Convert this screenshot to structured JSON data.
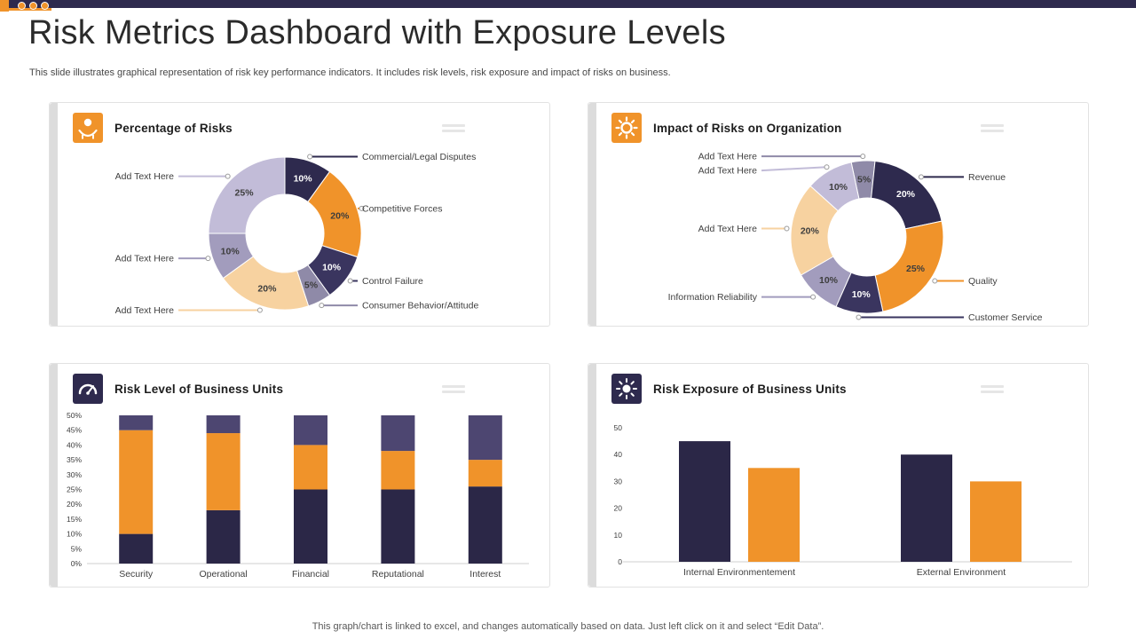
{
  "page": {
    "title": "Risk Metrics Dashboard with Exposure Levels",
    "subtitle": "This slide illustrates graphical representation of risk key performance indicators. It includes risk levels, risk exposure and impact of risks on business.",
    "footer": "This graph/chart is linked to excel, and changes automatically based on data. Just left click on it and select “Edit Data”."
  },
  "colors": {
    "accent_orange": "#f0932a",
    "accent_navy": "#2e2a4e",
    "bar_navy": "#2b2747",
    "bar_purple": "#4d4671",
    "peach": "#f7d2a0",
    "lavender": "#c2bcd8",
    "purple": "#a29cbd",
    "gray": "#8f8aa8"
  },
  "panels": {
    "percentage_of_risks": {
      "title": "Percentage of Risks"
    },
    "impact_of_risks": {
      "title": "Impact of Risks on Organization"
    },
    "risk_level": {
      "title": "Risk Level of Business Units"
    },
    "risk_exposure": {
      "title": "Risk Exposure of Business Units"
    }
  },
  "chart_data": [
    {
      "id": "percentage_of_risks",
      "type": "donut",
      "title": "Percentage of Risks",
      "start_angle": 0,
      "slices": [
        {
          "label": "Commercial/Legal Disputes",
          "value": 10,
          "color": "#2e2a4e",
          "text_color": "#ffffff",
          "side": "right"
        },
        {
          "label": "Competitive Forces",
          "value": 20,
          "color": "#f0932a",
          "text_color": "#3d3d3d",
          "side": "right"
        },
        {
          "label": "Control Failure",
          "value": 10,
          "color": "#3a355f",
          "text_color": "#ffffff",
          "side": "right"
        },
        {
          "label": "Consumer Behavior/Attitude",
          "value": 5,
          "color": "#8f8aa8",
          "text_color": "#3d3d3d",
          "side": "right"
        },
        {
          "label": "Add Text Here",
          "value": 20,
          "color": "#f7d2a0",
          "text_color": "#3d3d3d",
          "side": "left"
        },
        {
          "label": "Add Text Here",
          "value": 10,
          "color": "#a29cbd",
          "text_color": "#3d3d3d",
          "side": "left"
        },
        {
          "label": "Add Text Here",
          "value": 25,
          "color": "#c2bcd8",
          "text_color": "#3d3d3d",
          "side": "left"
        }
      ]
    },
    {
      "id": "impact_of_risks",
      "type": "donut",
      "title": "Impact of Risks on Organization",
      "start_angle": -12,
      "slices": [
        {
          "label": "Add Text Here",
          "value": 5,
          "color": "#8f8aa8",
          "text_color": "#3d3d3d",
          "side": "left"
        },
        {
          "label": "Revenue",
          "value": 20,
          "color": "#2e2a4e",
          "text_color": "#ffffff",
          "side": "right"
        },
        {
          "label": "Quality",
          "value": 25,
          "color": "#f0932a",
          "text_color": "#3d3d3d",
          "side": "right"
        },
        {
          "label": "Customer Service",
          "value": 10,
          "color": "#3a355f",
          "text_color": "#ffffff",
          "side": "right"
        },
        {
          "label": "Information Reliability",
          "value": 10,
          "color": "#a29cbd",
          "text_color": "#3d3d3d",
          "side": "left"
        },
        {
          "label": "Add Text Here",
          "value": 20,
          "color": "#f7d2a0",
          "text_color": "#3d3d3d",
          "side": "left"
        },
        {
          "label": "Add Text Here",
          "value": 10,
          "color": "#c2bcd8",
          "text_color": "#3d3d3d",
          "side": "left"
        }
      ]
    },
    {
      "id": "risk_level",
      "type": "stacked-bar",
      "title": "Risk Level of Business Units",
      "categories": [
        "Security",
        "Operational",
        "Financial",
        "Reputational",
        "Interest"
      ],
      "series": [
        {
          "name": "segment-bottom",
          "color": "#2b2747",
          "values": [
            10,
            18,
            25,
            25,
            26
          ]
        },
        {
          "name": "segment-middle",
          "color": "#f0932a",
          "values": [
            35,
            26,
            15,
            13,
            9
          ]
        },
        {
          "name": "segment-top",
          "color": "#4d4671",
          "values": [
            5,
            6,
            10,
            12,
            15
          ]
        }
      ],
      "yticks": [
        0,
        5,
        10,
        15,
        20,
        25,
        30,
        35,
        40,
        45,
        50
      ],
      "ytick_suffix": "%",
      "ymax": 50
    },
    {
      "id": "risk_exposure",
      "type": "grouped-bar",
      "title": "Risk Exposure of Business Units",
      "categories": [
        "Internal Environmentement",
        "External Environment"
      ],
      "series": [
        {
          "name": "series-dark",
          "color": "#2b2747",
          "values": [
            45,
            40
          ]
        },
        {
          "name": "series-orange",
          "color": "#f0932a",
          "values": [
            35,
            30
          ]
        }
      ],
      "yticks": [
        0,
        10,
        20,
        30,
        40,
        50
      ],
      "ytick_suffix": "",
      "ymax": 50
    }
  ]
}
